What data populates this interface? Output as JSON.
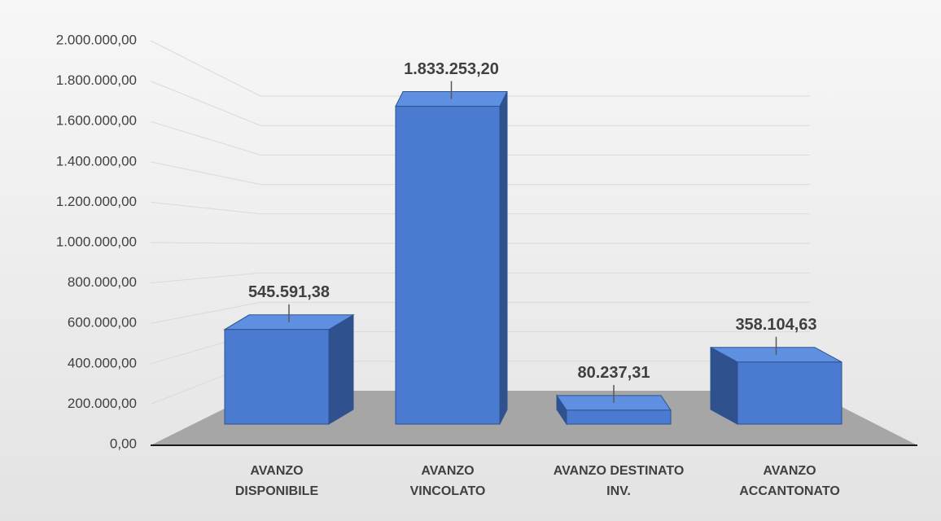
{
  "chart_data": {
    "type": "bar3d",
    "categories": [
      "AVANZO\nDISPONIBILE",
      "AVANZO\nVINCOLATO",
      "AVANZO DESTINATO\nINV.",
      "AVANZO\nACCANTONATO"
    ],
    "values": [
      545591.38,
      1833253.2,
      80237.31,
      358104.63
    ],
    "value_labels": [
      "545.591,38",
      "1.833.253,20",
      "80.237,31",
      "358.104,63"
    ],
    "color": "#4a7bd0",
    "ylim": [
      0,
      2000000
    ],
    "yticks": [
      {
        "value": 0,
        "label": "0,00"
      },
      {
        "value": 200000,
        "label": "200.000,00"
      },
      {
        "value": 400000,
        "label": "400.000,00"
      },
      {
        "value": 600000,
        "label": "600.000,00"
      },
      {
        "value": 800000,
        "label": "800.000,00"
      },
      {
        "value": 1000000,
        "label": "1.000.000,00"
      },
      {
        "value": 1200000,
        "label": "1.200.000,00"
      },
      {
        "value": 1400000,
        "label": "1.400.000,00"
      },
      {
        "value": 1600000,
        "label": "1.600.000,00"
      },
      {
        "value": 1800000,
        "label": "1.800.000,00"
      },
      {
        "value": 2000000,
        "label": "2.000.000,00"
      }
    ],
    "grid": true
  }
}
